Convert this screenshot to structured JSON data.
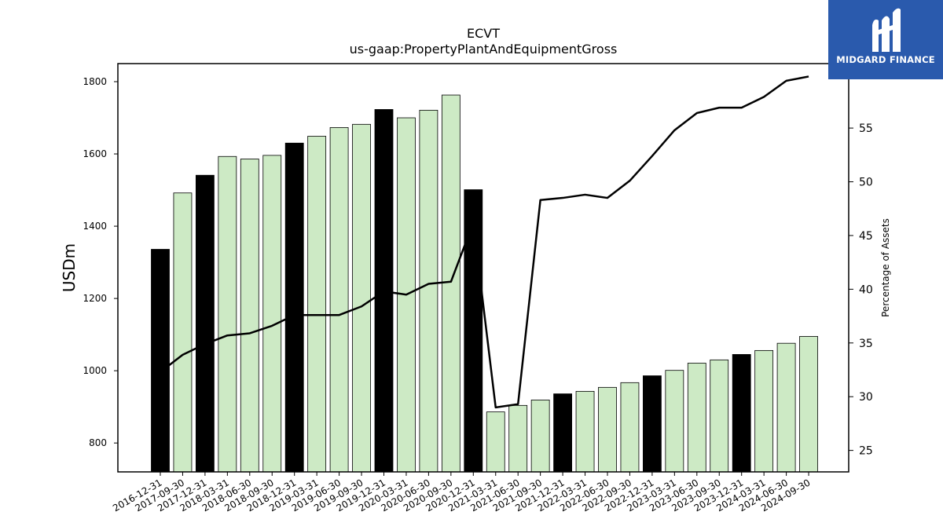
{
  "logo": {
    "text": "MIDGARD FINANCE",
    "icon": "midgard-logo-icon",
    "bg": "#2a5aad"
  },
  "chart_data": {
    "type": "bar",
    "title": "ECVT",
    "subtitle": "us-gaap:PropertyPlantAndEquipmentGross",
    "ylabel": "USDm",
    "y2label": "Percentage of Assets",
    "ylim": [
      720,
      1850
    ],
    "y2lim": [
      23,
      61
    ],
    "yticks": [
      800,
      1000,
      1200,
      1400,
      1600,
      1800
    ],
    "y2ticks": [
      25,
      30,
      35,
      40,
      45,
      50,
      55
    ],
    "categories": [
      "2016-12-31",
      "2017-09-30",
      "2017-12-31",
      "2018-03-31",
      "2018-06-30",
      "2018-09-30",
      "2018-12-31",
      "2019-03-31",
      "2019-06-30",
      "2019-09-30",
      "2019-12-31",
      "2020-03-31",
      "2020-06-30",
      "2020-09-30",
      "2020-12-31",
      "2021-03-31",
      "2021-06-30",
      "2021-09-30",
      "2021-12-31",
      "2022-03-31",
      "2022-06-30",
      "2022-09-30",
      "2022-12-31",
      "2023-03-31",
      "2023-06-30",
      "2023-09-30",
      "2023-12-31",
      "2024-03-31",
      "2024-06-30",
      "2024-09-30"
    ],
    "series": [
      {
        "type": "bar",
        "values": [
          1336,
          1492,
          1541,
          1593,
          1586,
          1596,
          1630,
          1649,
          1673,
          1682,
          1723,
          1700,
          1721,
          1763,
          1501,
          886,
          904,
          919,
          936,
          943,
          954,
          967,
          986,
          1001,
          1021,
          1030,
          1045,
          1056,
          1076,
          1095
        ],
        "annual": [
          true,
          false,
          true,
          false,
          false,
          false,
          true,
          false,
          false,
          false,
          true,
          false,
          false,
          false,
          true,
          false,
          false,
          false,
          true,
          false,
          false,
          false,
          true,
          false,
          false,
          false,
          true,
          false,
          false,
          false
        ]
      },
      {
        "type": "line",
        "axis": "right",
        "values": [
          32.3,
          33.9,
          34.9,
          35.7,
          35.9,
          36.6,
          37.6,
          37.6,
          37.6,
          38.4,
          39.8,
          39.5,
          40.5,
          40.7,
          46.2,
          29.0,
          29.3,
          48.3,
          48.5,
          48.8,
          48.5,
          50.1,
          52.4,
          54.8,
          56.4,
          56.9,
          56.9,
          57.9,
          59.4,
          59.8
        ]
      }
    ],
    "colors": {
      "annual_bar": "#000000",
      "quarter_bar": "#cdeac5",
      "line": "#000000"
    }
  }
}
